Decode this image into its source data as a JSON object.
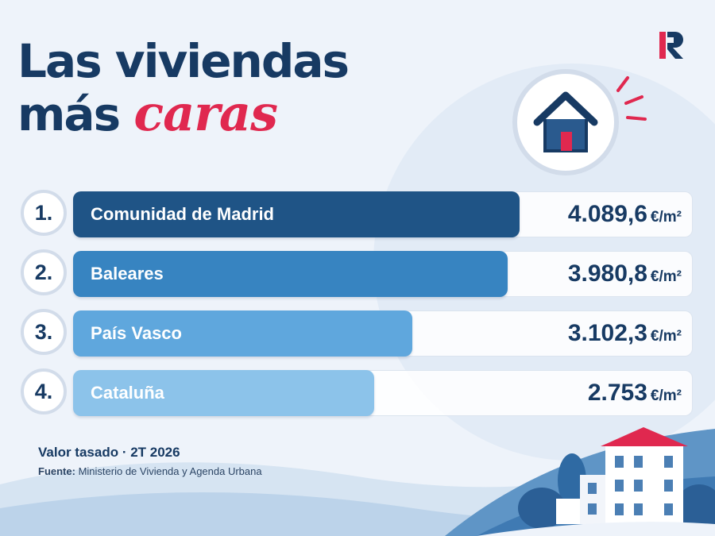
{
  "title": {
    "line1": "Las viviendas",
    "line2_plain": "más",
    "line2_accent": "caras"
  },
  "logo": {
    "name": "r-logo-icon",
    "color": "#e0284f"
  },
  "house_icon": {
    "name": "house-icon"
  },
  "colors": {
    "title": "#173a63",
    "accent": "#e0284f",
    "bars": [
      "#1f5486",
      "#3784c1",
      "#5fa7dd",
      "#8cc3ea"
    ]
  },
  "chart_data": {
    "type": "bar",
    "orientation": "horizontal",
    "categories": [
      "Comunidad de Madrid",
      "Baleares",
      "País Vasco",
      "Cataluña"
    ],
    "ranks": [
      "1.",
      "2.",
      "3.",
      "4."
    ],
    "values": [
      4089.6,
      3980.8,
      3102.3,
      2753
    ],
    "value_labels": [
      "4.089,6",
      "3.980,8",
      "3.102,3",
      "2.753"
    ],
    "unit": "€/m²",
    "title": "Las viviendas más caras",
    "xlim": [
      0,
      4800
    ],
    "grid": false,
    "legend": "none"
  },
  "footer": {
    "main": "Valor tasado · 2T 2026",
    "source_label": "Fuente:",
    "source_text": "Ministerio de Vivienda y Agenda Urbana"
  }
}
